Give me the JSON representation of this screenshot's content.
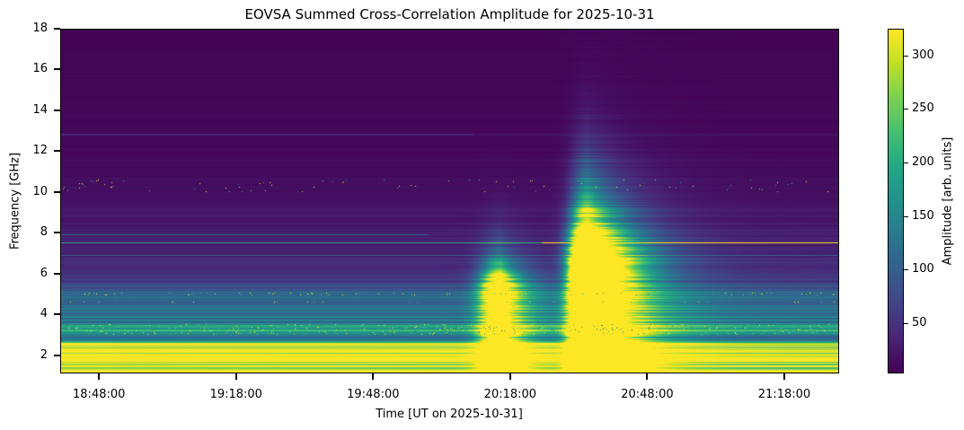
{
  "chart_data": {
    "type": "heatmap",
    "title": "EOVSA Summed Cross-Correlation Amplitude for 2025-10-31",
    "xlabel": "Time [UT on 2025-10-31]",
    "ylabel": "Frequency [GHz]",
    "colorbar_label": "Amplitude [arb. units]",
    "colormap": "viridis",
    "xlim": [
      "18:39:30",
      "21:30:00"
    ],
    "ylim": [
      1.1,
      18
    ],
    "clim": [
      3,
      325
    ],
    "xticks": [
      "18:48:00",
      "19:18:00",
      "19:48:00",
      "20:18:00",
      "20:48:00",
      "21:18:00"
    ],
    "yticks": [
      2,
      4,
      6,
      8,
      10,
      12,
      14,
      16,
      18
    ],
    "cticks": [
      50,
      100,
      150,
      200,
      250,
      300
    ],
    "baseline_profile": [
      [
        1.1,
        340
      ],
      [
        2.4,
        330
      ],
      [
        2.6,
        300
      ],
      [
        2.7,
        150
      ],
      [
        3.0,
        125
      ],
      [
        3.2,
        190
      ],
      [
        3.5,
        180
      ],
      [
        3.6,
        120
      ],
      [
        4.0,
        135
      ],
      [
        4.4,
        110
      ],
      [
        5.0,
        105
      ],
      [
        5.3,
        80
      ],
      [
        5.6,
        55
      ],
      [
        6.0,
        42
      ],
      [
        7.0,
        35
      ],
      [
        8.0,
        28
      ],
      [
        9.0,
        22
      ],
      [
        10.0,
        15
      ],
      [
        12.0,
        10
      ],
      [
        13.0,
        9
      ],
      [
        18.0,
        5
      ]
    ],
    "narrowband_lines": [
      {
        "freq_ghz": 7.5,
        "amp": 200,
        "amp_after": 320,
        "change_time": "20:25"
      },
      {
        "freq_ghz": 7.9,
        "amp": 120,
        "amp_after": 40,
        "change_time": "20:00"
      },
      {
        "freq_ghz": 6.9,
        "amp": 110,
        "amp_after": 110,
        "change_time": "20:00"
      },
      {
        "freq_ghz": 12.8,
        "amp": 35,
        "amp_after": 20,
        "change_time": "20:10"
      }
    ],
    "bursts": [
      {
        "peak_time": "20:16",
        "rise_min": 3,
        "decay_min": 4,
        "amp": 420,
        "core_top_ghz": 5.5,
        "fall_ghz": 1.0
      },
      {
        "peak_time": "20:35",
        "rise_min": 2.5,
        "decay_min": 7,
        "amp": 900,
        "core_top_ghz": 7.0,
        "fall_ghz": 1.8
      }
    ]
  }
}
